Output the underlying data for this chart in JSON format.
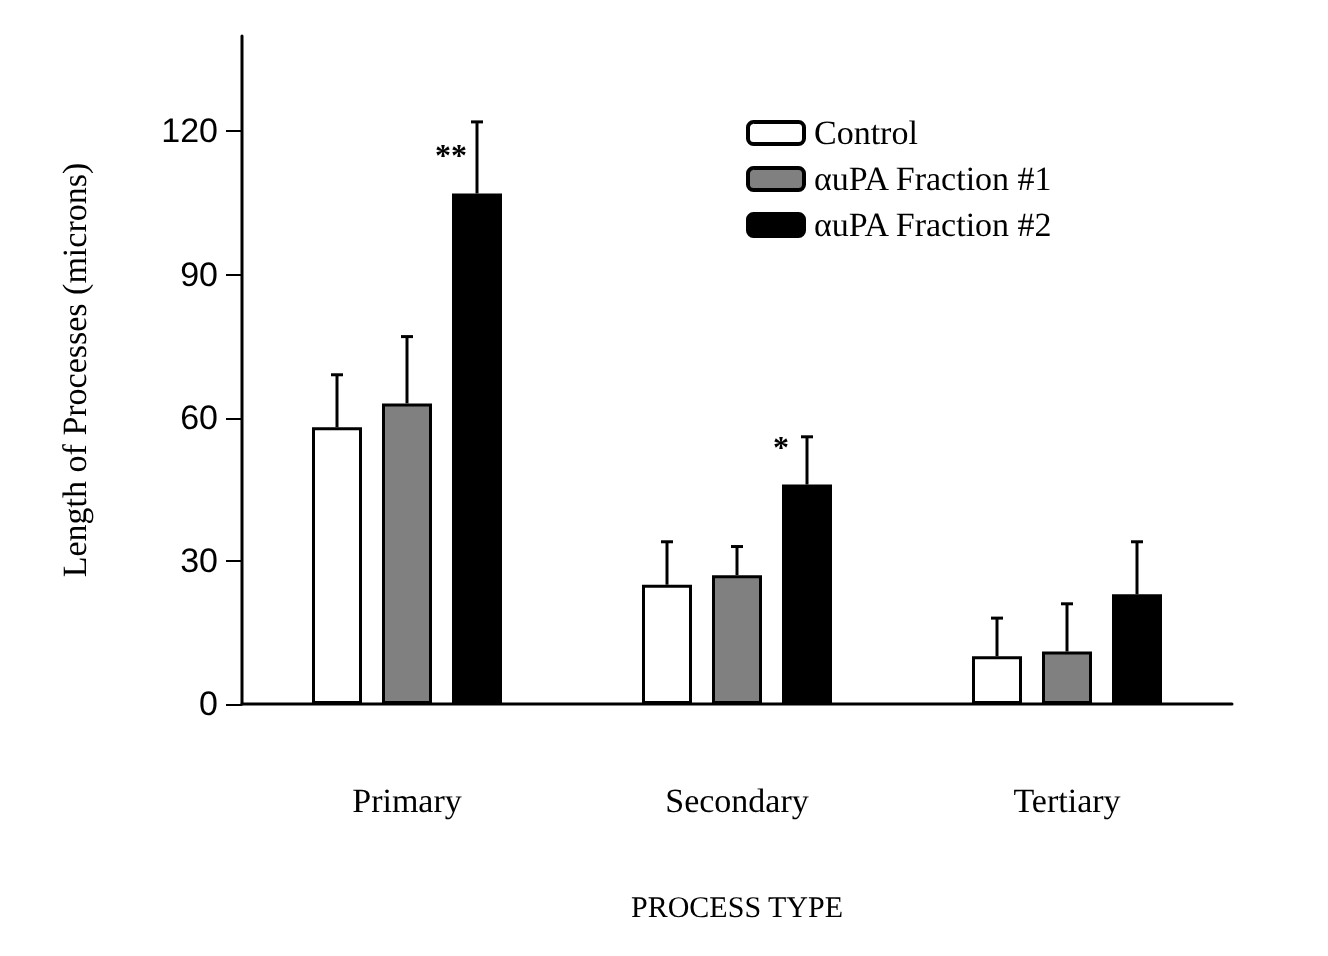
{
  "chart_data": {
    "type": "bar",
    "xlabel": "PROCESS TYPE",
    "ylabel": "Length of Processes (microns)",
    "categories": [
      "Primary",
      "Secondary",
      "Tertiary"
    ],
    "series": [
      {
        "name": "Control",
        "color": "#ffffff",
        "values": [
          58,
          25,
          10
        ],
        "errors": [
          11,
          9,
          8
        ]
      },
      {
        "name": "αuPA Fraction #1",
        "color": "#808080",
        "values": [
          63,
          27,
          11
        ],
        "errors": [
          14,
          6,
          10
        ]
      },
      {
        "name": "αuPA Fraction #2",
        "color": "#000000",
        "values": [
          107,
          46,
          23
        ],
        "errors": [
          15,
          10,
          11
        ]
      }
    ],
    "ylim": [
      0,
      140
    ],
    "yticks": [
      0,
      30,
      60,
      90,
      120
    ],
    "grid": false,
    "legend": "top right",
    "annotations": [
      "**",
      "*"
    ]
  }
}
